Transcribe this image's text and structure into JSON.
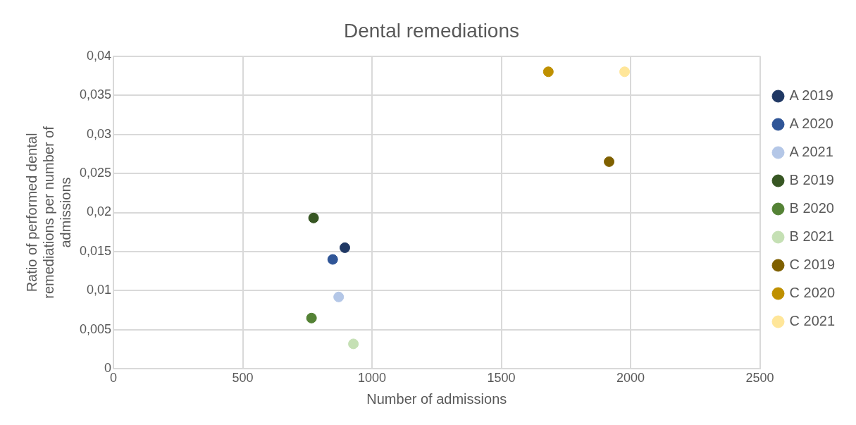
{
  "chart_data": {
    "type": "scatter",
    "title": "Dental remediations",
    "xlabel": "Number of admissions",
    "ylabel": "Ratio of performed dental remediations per number of admissions",
    "xlim": [
      0,
      2500
    ],
    "xticks": [
      0,
      500,
      1000,
      1500,
      2000,
      2500
    ],
    "ylim": [
      0,
      0.04
    ],
    "yticks": [
      {
        "value": 0,
        "label": "0"
      },
      {
        "value": 0.005,
        "label": "0,005"
      },
      {
        "value": 0.01,
        "label": "0,01"
      },
      {
        "value": 0.015,
        "label": "0,015"
      },
      {
        "value": 0.02,
        "label": "0,02"
      },
      {
        "value": 0.025,
        "label": "0,025"
      },
      {
        "value": 0.03,
        "label": "0,03"
      },
      {
        "value": 0.035,
        "label": "0,035"
      },
      {
        "value": 0.04,
        "label": "0,04"
      }
    ],
    "grid": true,
    "legend": "right",
    "marker": "circle",
    "series": [
      {
        "name": "A 2019",
        "color": "#203864",
        "x": [
          895
        ],
        "values": [
          0.0155
        ]
      },
      {
        "name": "A 2020",
        "color": "#2f5597",
        "x": [
          848
        ],
        "values": [
          0.014
        ]
      },
      {
        "name": "A 2021",
        "color": "#b4c7e7",
        "x": [
          871
        ],
        "values": [
          0.0092
        ]
      },
      {
        "name": "B 2019",
        "color": "#375623",
        "x": [
          774
        ],
        "values": [
          0.0193
        ]
      },
      {
        "name": "B 2020",
        "color": "#548235",
        "x": [
          766
        ],
        "values": [
          0.0065
        ]
      },
      {
        "name": "B 2021",
        "color": "#c5e0b4",
        "x": [
          928
        ],
        "values": [
          0.0032
        ]
      },
      {
        "name": "C 2019",
        "color": "#7f6000",
        "x": [
          1917
        ],
        "values": [
          0.0265
        ]
      },
      {
        "name": "C 2020",
        "color": "#bf9000",
        "x": [
          1682
        ],
        "values": [
          0.038
        ]
      },
      {
        "name": "C 2021",
        "color": "#ffe699",
        "x": [
          1977
        ],
        "values": [
          0.038
        ]
      }
    ]
  }
}
